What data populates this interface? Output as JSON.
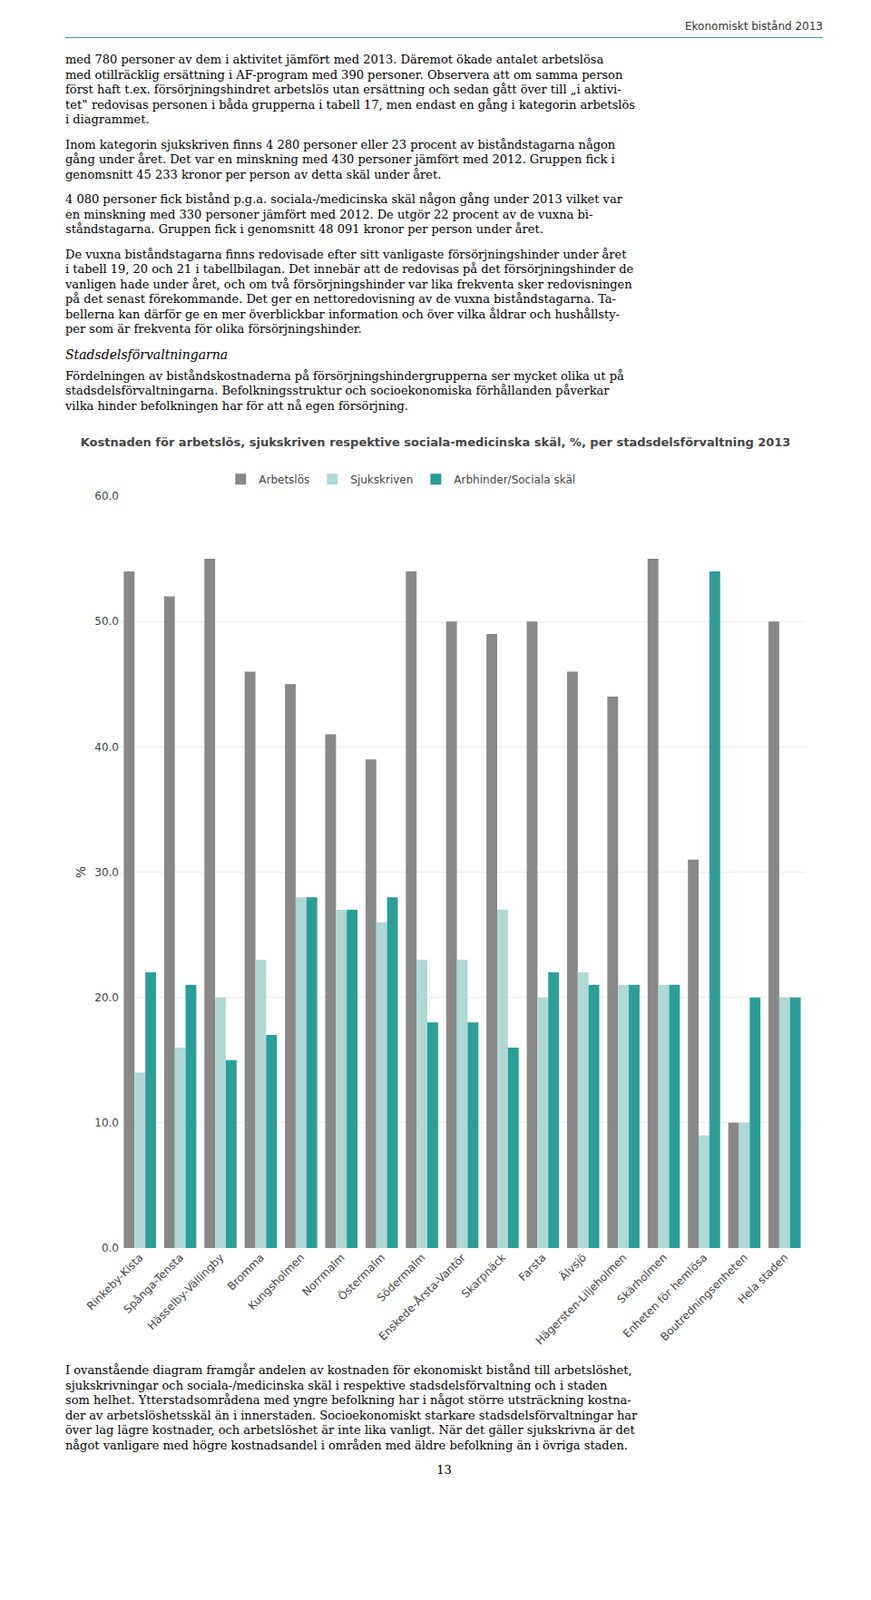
{
  "chart_data": {
    "type": "bar",
    "title": "Kostnaden för arbetslös, sjukskriven respektive sociala-medicinska skäl, %, per stadsdelsförvaltning 2013",
    "ylabel": "%",
    "categories": [
      "Rinkeby-Kista",
      "Spånga-Tensta",
      "Hässelby-Vällingby",
      "Bromma",
      "Kungsholmen",
      "Norrmalm",
      "Östermalm",
      "Södermalm",
      "Enskede-Årsta-Vantör",
      "Skarpnäck",
      "Farsta",
      "Älvsjö",
      "Hägersten-Liljeholmen",
      "Skärholmen",
      "Enheten för hemlösa",
      "Boutredningsenheten",
      "Hela staden"
    ],
    "series": [
      {
        "name": "Arbetslös",
        "color": "#888888",
        "values": [
          54,
          52,
          55,
          46,
          45,
          41,
          39,
          54,
          50,
          49,
          50,
          46,
          44,
          55,
          31,
          10,
          50
        ]
      },
      {
        "name": "Sjukskriven",
        "color": "#b0d8d4",
        "values": [
          14,
          16,
          20,
          23,
          28,
          27,
          26,
          23,
          23,
          27,
          20,
          22,
          21,
          21,
          9,
          10,
          20
        ]
      },
      {
        "name": "Arbhinder/Sociala skäl",
        "color": "#2b9e96",
        "values": [
          22,
          21,
          15,
          17,
          28,
          27,
          28,
          18,
          18,
          16,
          22,
          21,
          21,
          21,
          54,
          20,
          20
        ]
      }
    ],
    "ylim": [
      0,
      60
    ],
    "yticks": [
      {
        "value": 0,
        "label": "0.0"
      },
      {
        "value": 10,
        "label": "10.0"
      },
      {
        "value": 20,
        "label": "20.0"
      },
      {
        "value": 30,
        "label": "30.0"
      },
      {
        "value": 40,
        "label": "40.0"
      },
      {
        "value": 50,
        "label": "50.0"
      },
      {
        "value": 60,
        "label": "60.0"
      }
    ],
    "grid": true,
    "legend": "top",
    "annotations": [
      "Ekonomiskt bistånd 2013",
      "med 780 personer av dem i aktivitet jämfört med 2013. Däremot ökade antalet arbetslösa\nmed otillräcklig ersättning i AF-program med 390 personer. Observera att om samma person\nförst haft t.ex. försörjningshindret arbetslös utan ersättning och sedan gått över till „i aktivi-\ntet‟ redovisas personen i båda grupperna i tabell 17, men endast en gång i kategorin arbetslös\ni diagrammet.",
      "Inom kategorin sjukskriven finns 4 280 personer eller 23 procent av biståndstagarna någon\ngång under året. Det var en minskning med 430 personer jämfört med 2012. Gruppen fick i\ngenomsnitt 45 233 kronor per person av detta skäl under året.",
      "4 080 personer fick bistånd p.g.a. sociala-/medicinska skäl någon gång under 2013 vilket var\nen minskning med 330 personer jämfört med 2012. De utgör 22 procent av de vuxna bi-\nståndstagarna. Gruppen fick i genomsnitt 48 091 kronor per person under året.",
      "De vuxna biståndstagarna finns redovisade efter sitt vanligaste försörjningshinder under året\ni tabell 19, 20 och 21 i tabellbilagan. Det innebär att de redovisas på det försörjningshinder de\nvanligen hade under året, och om två försörjningshinder var lika frekventa sker redovisningen\npå det senast förekommande. Det ger en nettoredovisning av de vuxna biståndstagarna. Ta-\nbellerna kan därför ge en mer överblickbar information och över vilka åldrar och hushållsty-\nper som är frekventa för olika försörjningshinder.",
      "Stadsdelsförvaltningarna",
      "Fördelningen av biståndskostnaderna på försörjningshindergrupperna ser mycket olika ut på\nstadsdelsförvaltningarna. Befolkningsstruktur och socioekonomiska förhållanden påverkar\nvilka hinder befolkningen har för att nå egen försörjning.",
      "I ovanstående diagram framgår andelen av kostnaden för ekonomiskt bistånd till arbetslöshet,\nsjukskrivningar och sociala-/medicinska skäl i respektive stadsdelsförvaltning och i staden\nsom helhet. Ytterstadsområdena med yngre befolkning har i något större utsträckning kostna-\nder av arbetslöshetsskäl än i innerstaden. Socioekonomiskt starkare stadsdelsförvaltningar har\növer lag lägre kostnader, och arbetslöshet är inte lika vanligt. När det gäller sjukskrivna är det\nnågot vanligare med högre kostnadsandel i områden med äldre befolkning än i övriga staden.",
      "13"
    ]
  }
}
